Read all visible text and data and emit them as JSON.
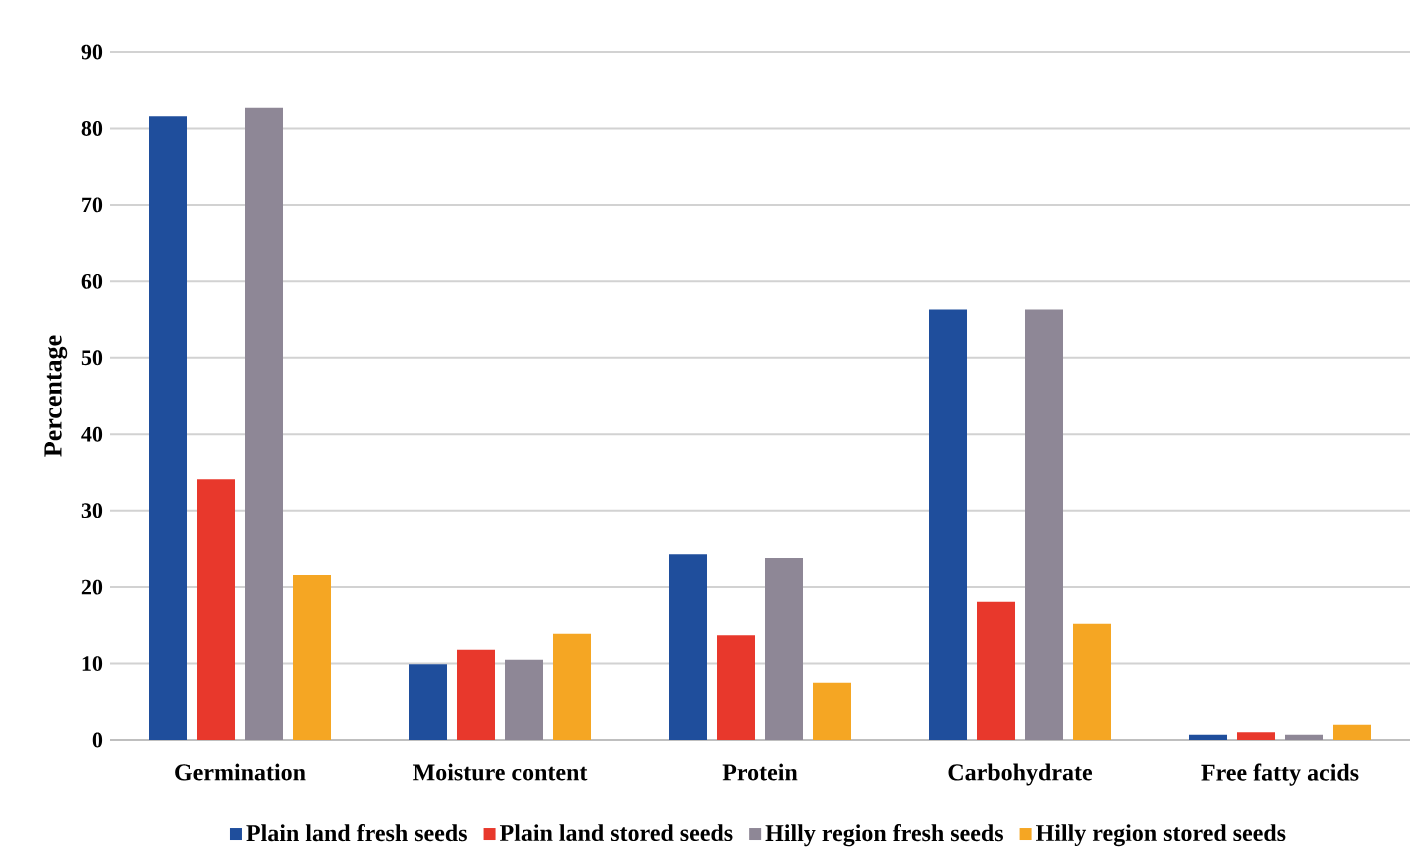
{
  "chart_data": {
    "type": "bar",
    "ylabel": "Percentage",
    "categories": [
      "Germination",
      "Moisture content",
      "Protein",
      "Carbohydrate",
      "Free fatty acids"
    ],
    "series": [
      {
        "name": "Plain land fresh seeds",
        "color": "#1f4e9c",
        "values": [
          81.6,
          9.9,
          24.3,
          56.3,
          0.7
        ]
      },
      {
        "name": "Plain land stored seeds",
        "color": "#e8382c",
        "values": [
          34.1,
          11.8,
          13.7,
          18.1,
          1.0
        ]
      },
      {
        "name": "Hilly region fresh seeds",
        "color": "#8e8796",
        "values": [
          82.7,
          10.5,
          23.8,
          56.3,
          0.7
        ]
      },
      {
        "name": "Hilly region stored seeds",
        "color": "#f5a623",
        "values": [
          21.6,
          13.9,
          7.5,
          15.2,
          2.0
        ]
      }
    ],
    "ylim": [
      0,
      90
    ],
    "yticks": [
      0,
      10,
      20,
      30,
      40,
      50,
      60,
      70,
      80,
      90
    ],
    "grid": "y",
    "legend": "bottom"
  }
}
